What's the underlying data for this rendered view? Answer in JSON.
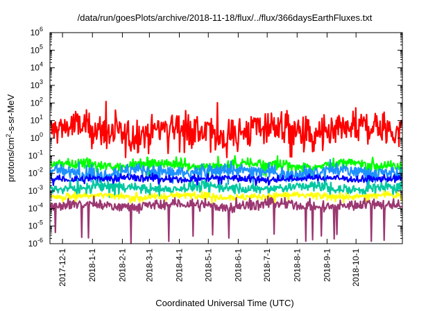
{
  "chart_data": {
    "type": "line",
    "title": "/data/run/goesPlots/archive/2018-11-18/flux/../flux/366daysEarthFluxes.txt",
    "xlabel": "Coordinated Universal Time (UTC)",
    "ylabel": {
      "base": "protons/cm",
      "sup": "2",
      "rest": "-s-sr-MeV"
    },
    "yscale": "log",
    "ylim_exponents": [
      -6,
      6
    ],
    "ytick_exponents": [
      -6,
      -5,
      -4,
      -3,
      -2,
      -1,
      0,
      1,
      2,
      3,
      4,
      5,
      6
    ],
    "ytick_base": "10",
    "xlim": [
      "2017-11-18",
      "2018-11-18"
    ],
    "xticks": [
      "2017-12-1",
      "2018-1-1",
      "2018-2-1",
      "2018-3-1",
      "2018-4-1",
      "2018-5-1",
      "2018-6-1",
      "2018-7-1",
      "2018-8-1",
      "2018-9-1",
      "2018-10-1"
    ],
    "grid": false,
    "legend": "none",
    "series": [
      {
        "color": "#ff0000",
        "typical": 2.5,
        "spread_decades": 0.5,
        "min_excursion": 0.08,
        "max_excursion": 170
      },
      {
        "color": "#00ff00",
        "typical": 0.03,
        "spread_decades": 0.15,
        "min_excursion": 0.005,
        "max_excursion": 0.1
      },
      {
        "color": "#1e90ff",
        "typical": 0.012,
        "spread_decades": 0.2,
        "min_excursion": 0.002,
        "max_excursion": 0.06
      },
      {
        "color": "#0000ff",
        "typical": 0.005,
        "spread_decades": 0.1,
        "min_excursion": 0.002,
        "max_excursion": 0.01
      },
      {
        "color": "#00c8a0",
        "typical": 0.0015,
        "spread_decades": 0.15,
        "min_excursion": 0.0004,
        "max_excursion": 0.005
      },
      {
        "color": "#ffff00",
        "typical": 0.0005,
        "spread_decades": 0.1,
        "min_excursion": 0.0002,
        "max_excursion": 0.001
      },
      {
        "color": "#9b3771",
        "typical": 0.00015,
        "spread_decades": 0.15,
        "min_excursion": 1e-06,
        "max_excursion": 0.0005
      }
    ]
  }
}
